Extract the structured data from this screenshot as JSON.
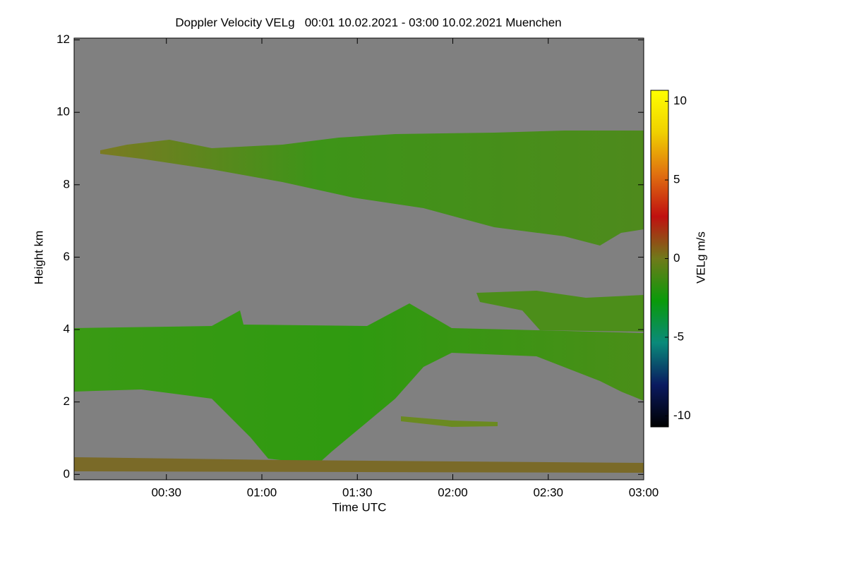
{
  "chart_data": {
    "type": "heatmap",
    "title": "Doppler Velocity VELg   00:01 10.02.2021 - 03:00 10.02.2021 Muenchen",
    "x_label": "Time UTC",
    "y_label": "Height km",
    "colorbar_label": "VELg m/s",
    "xlim": [
      0.0167,
      3.0
    ],
    "xticks": [
      {
        "value": 0.5,
        "label": "00:30"
      },
      {
        "value": 1.0,
        "label": "01:00"
      },
      {
        "value": 1.5,
        "label": "01:30"
      },
      {
        "value": 2.0,
        "label": "02:00"
      },
      {
        "value": 2.5,
        "label": "02:30"
      },
      {
        "value": 3.0,
        "label": "03:00"
      }
    ],
    "ylim": [
      -0.15,
      12.05
    ],
    "yticks": [
      0,
      2,
      4,
      6,
      8,
      10,
      12
    ],
    "zlim": [
      -10.7,
      10.7
    ],
    "zticks": [
      -10,
      -5,
      0,
      5,
      10
    ],
    "background": "#808080",
    "colormap": [
      "#000000",
      "#0a1a60",
      "#0a8a7a",
      "#0a9a0a",
      "#707a1a",
      "#c01010",
      "#e07010",
      "#f0d000",
      "#ffff00"
    ]
  }
}
